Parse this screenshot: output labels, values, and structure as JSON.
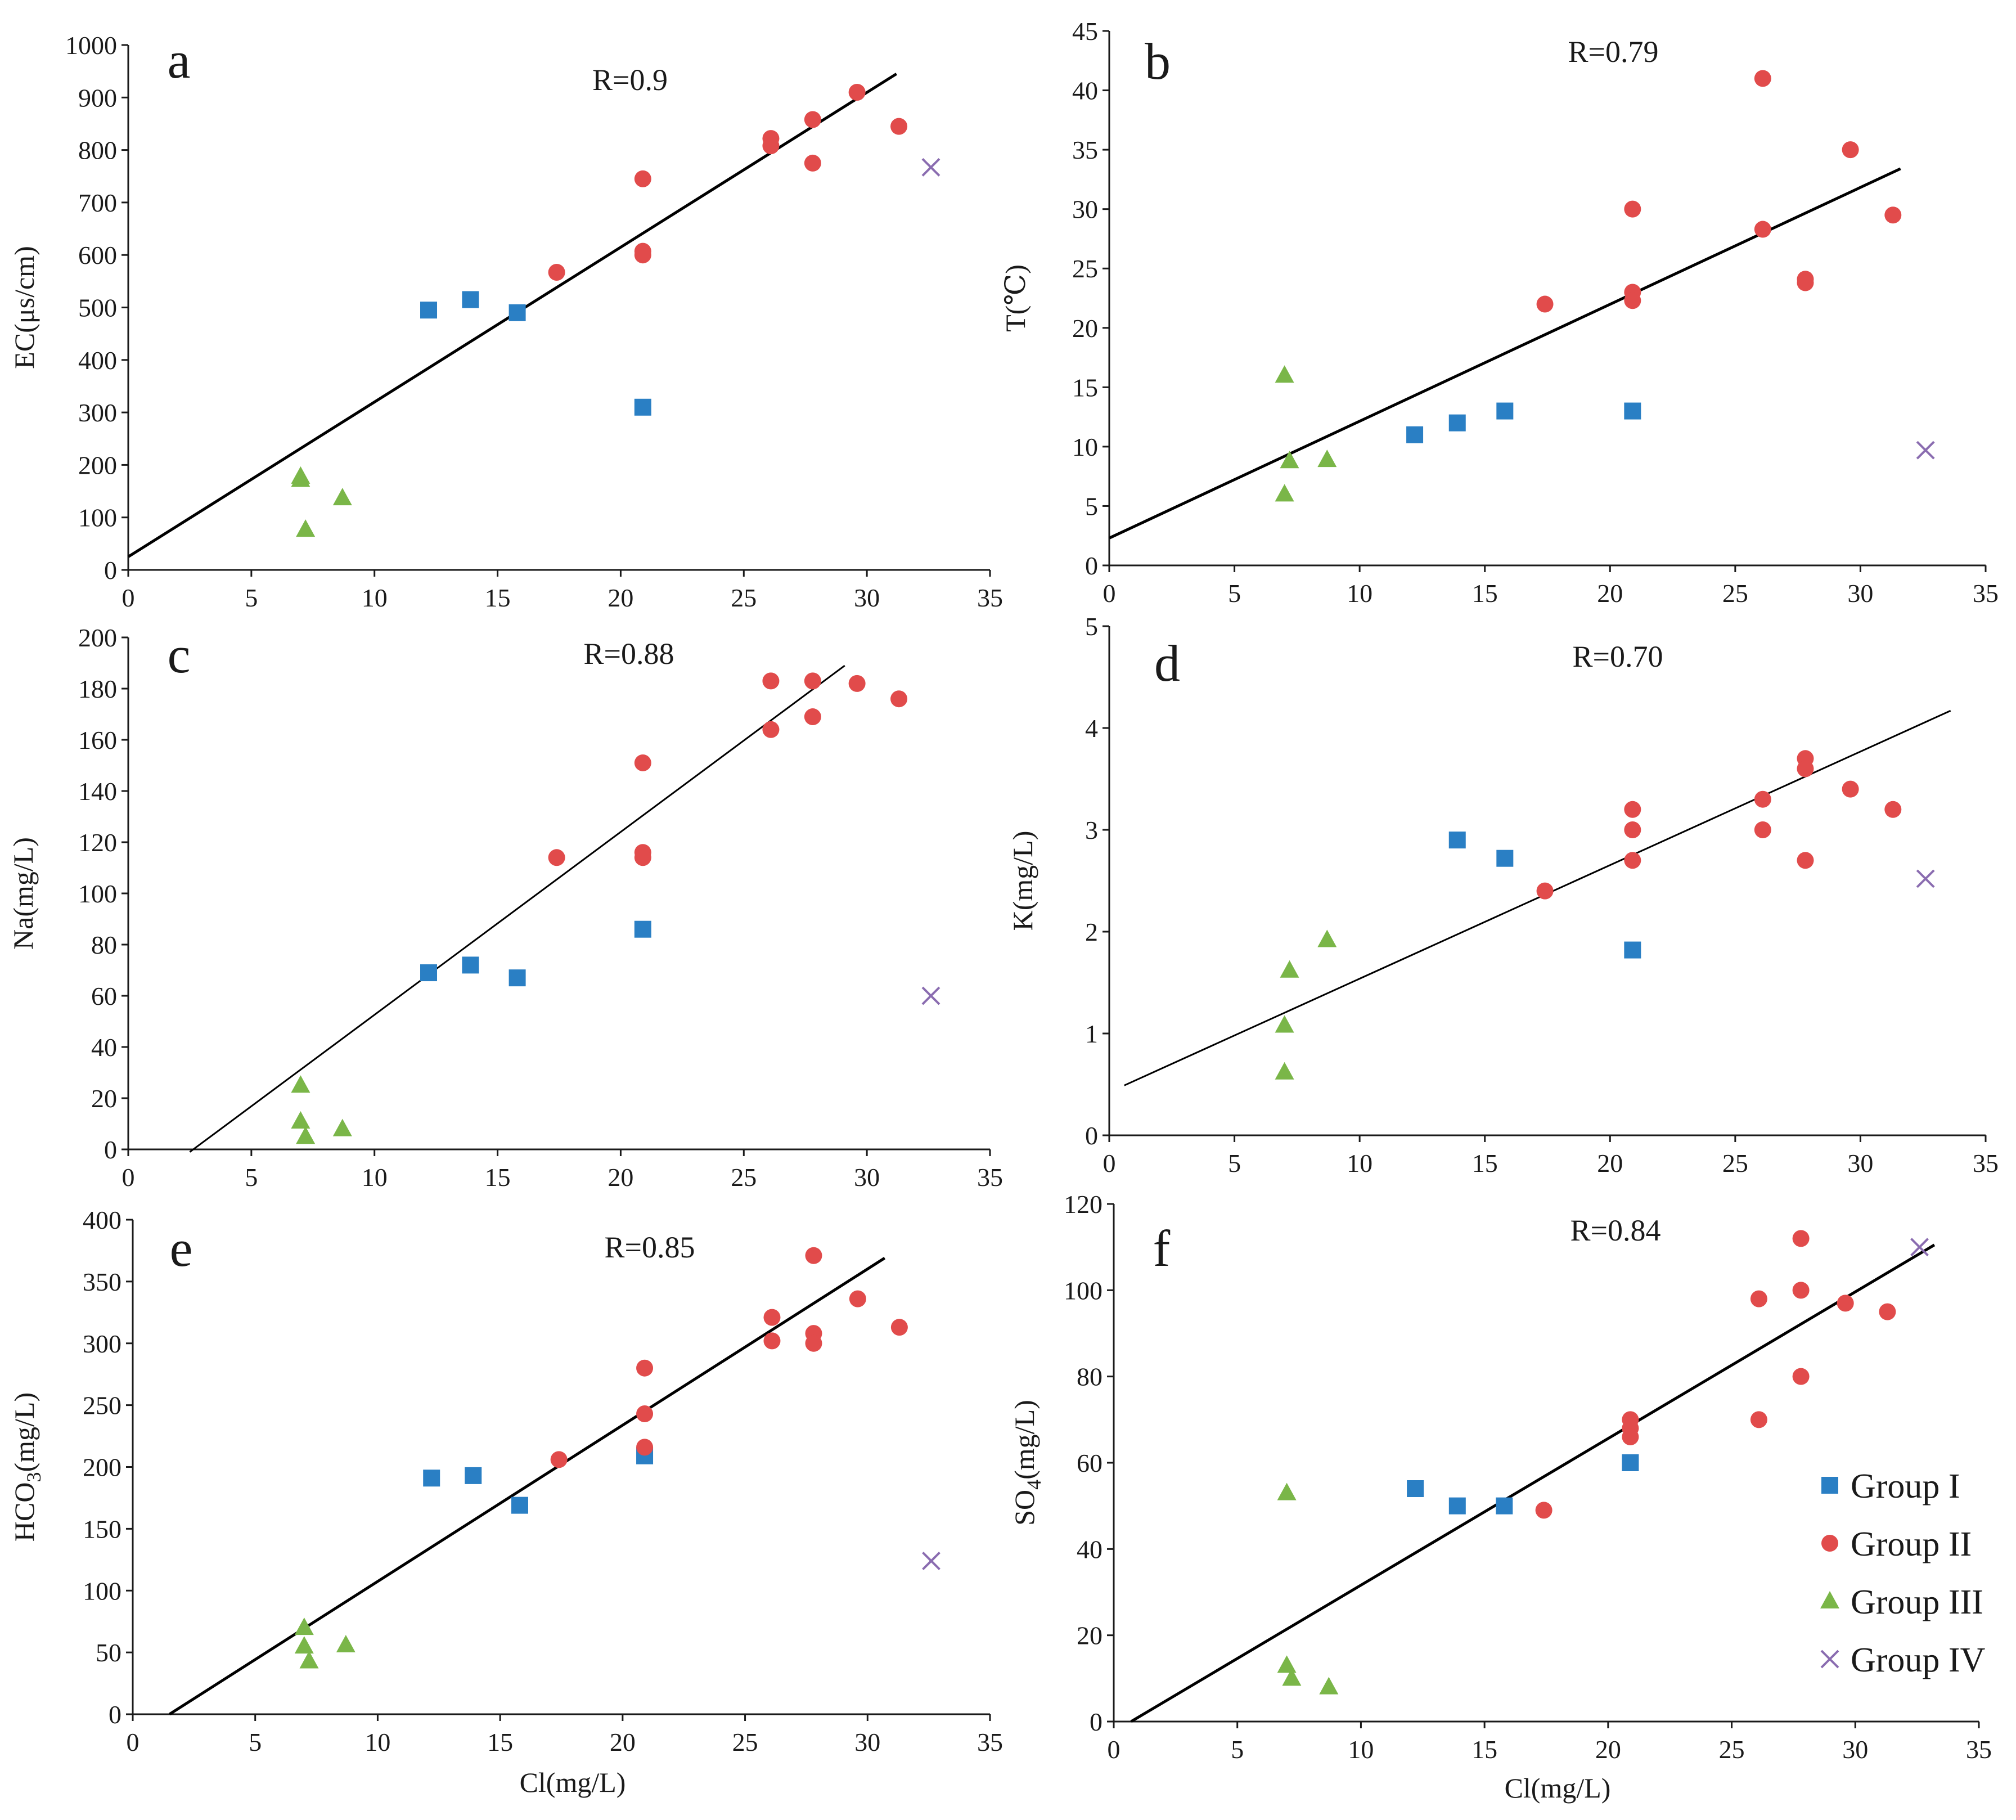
{
  "colors": {
    "group_i": "#2a7fc4",
    "group_ii": "#e14b4b",
    "group_iii": "#7ab648",
    "group_iv": "#8a6cb0"
  },
  "legend": {
    "items": [
      {
        "label": "Group I",
        "marker": "square",
        "color": "#2a7fc4"
      },
      {
        "label": "Group II",
        "marker": "circle",
        "color": "#e14b4b"
      },
      {
        "label": "Group III",
        "marker": "triangle",
        "color": "#7ab648"
      },
      {
        "label": "Group IV",
        "marker": "cross",
        "color": "#8a6cb0"
      }
    ]
  },
  "chart_data": [
    {
      "id": "a",
      "type": "scatter",
      "panel_letter": "a",
      "r_label": "R=0.9",
      "xlabel": "",
      "ylabel": "EC(μs/cm)",
      "xlim": [
        0,
        35
      ],
      "ylim": [
        0,
        1000
      ],
      "xstep": 5,
      "ystep": 100,
      "xticks": [
        "0",
        "5",
        "10",
        "15",
        "20",
        "25",
        "30",
        "35"
      ],
      "yticks": [
        "0",
        "100",
        "200",
        "300",
        "400",
        "500",
        "600",
        "700",
        "800",
        "900",
        "1000"
      ],
      "fit": {
        "x1": 0,
        "y1": 25,
        "x2": 31.2,
        "y2": 945
      },
      "series": [
        {
          "name": "Group I",
          "points": [
            [
              12.2,
              495
            ],
            [
              13.9,
              515
            ],
            [
              15.8,
              490
            ],
            [
              20.9,
              310
            ]
          ]
        },
        {
          "name": "Group II",
          "points": [
            [
              17.4,
              567
            ],
            [
              20.9,
              745
            ],
            [
              20.9,
              607
            ],
            [
              20.9,
              600
            ],
            [
              26.1,
              822
            ],
            [
              26.1,
              808
            ],
            [
              27.8,
              858
            ],
            [
              27.8,
              775
            ],
            [
              29.6,
              910
            ],
            [
              31.3,
              845
            ]
          ]
        },
        {
          "name": "Group III",
          "points": [
            [
              7.0,
              178
            ],
            [
              7.0,
              172
            ],
            [
              7.2,
              77
            ],
            [
              8.7,
              137
            ]
          ]
        },
        {
          "name": "Group IV",
          "points": [
            [
              32.6,
              767
            ]
          ]
        }
      ]
    },
    {
      "id": "b",
      "type": "scatter",
      "panel_letter": "b",
      "r_label": "R=0.79",
      "xlabel": "",
      "ylabel": "T(℃)",
      "xlim": [
        0,
        35
      ],
      "ylim": [
        0,
        45
      ],
      "xstep": 5,
      "ystep": 5,
      "xticks": [
        "0",
        "5",
        "10",
        "15",
        "20",
        "25",
        "30",
        "35"
      ],
      "yticks": [
        "0",
        "5",
        "10",
        "15",
        "20",
        "25",
        "30",
        "35",
        "40",
        "45"
      ],
      "fit": {
        "x1": 0,
        "y1": 2.3,
        "x2": 31.6,
        "y2": 33.4
      },
      "series": [
        {
          "name": "Group I",
          "points": [
            [
              12.2,
              11
            ],
            [
              13.9,
              12
            ],
            [
              15.8,
              13
            ],
            [
              20.9,
              13
            ]
          ]
        },
        {
          "name": "Group II",
          "points": [
            [
              17.4,
              22
            ],
            [
              20.9,
              30
            ],
            [
              20.9,
              23
            ],
            [
              20.9,
              22.3
            ],
            [
              26.1,
              41
            ],
            [
              26.1,
              28.3
            ],
            [
              27.8,
              24.1
            ],
            [
              27.8,
              23.8
            ],
            [
              29.6,
              35
            ],
            [
              31.3,
              29.5
            ]
          ]
        },
        {
          "name": "Group III",
          "points": [
            [
              7.0,
              16
            ],
            [
              7.2,
              8.8
            ],
            [
              7.0,
              6
            ],
            [
              8.7,
              8.9
            ]
          ]
        },
        {
          "name": "Group IV",
          "points": [
            [
              32.6,
              9.7
            ]
          ]
        }
      ]
    },
    {
      "id": "c",
      "type": "scatter",
      "panel_letter": "c",
      "r_label": "R=0.88",
      "xlabel": "",
      "ylabel": "Na(mg/L)",
      "xlim": [
        0,
        35
      ],
      "ylim": [
        0,
        200
      ],
      "xstep": 5,
      "ystep": 20,
      "xticks": [
        "0",
        "5",
        "10",
        "15",
        "20",
        "25",
        "30",
        "35"
      ],
      "yticks": [
        "0",
        "20",
        "40",
        "60",
        "80",
        "100",
        "120",
        "140",
        "160",
        "180",
        "200"
      ],
      "fit": {
        "x1": 2.5,
        "y1": -1,
        "x2": 29.1,
        "y2": 189
      },
      "series": [
        {
          "name": "Group I",
          "points": [
            [
              12.2,
              69
            ],
            [
              13.9,
              72
            ],
            [
              15.8,
              67
            ],
            [
              20.9,
              86
            ]
          ]
        },
        {
          "name": "Group II",
          "points": [
            [
              17.4,
              114
            ],
            [
              20.9,
              151
            ],
            [
              20.9,
              116
            ],
            [
              20.9,
              114
            ],
            [
              26.1,
              183
            ],
            [
              26.1,
              164
            ],
            [
              27.8,
              183
            ],
            [
              27.8,
              169
            ],
            [
              29.6,
              182
            ],
            [
              31.3,
              176
            ]
          ]
        },
        {
          "name": "Group III",
          "points": [
            [
              7.0,
              25
            ],
            [
              7.0,
              11
            ],
            [
              7.2,
              5
            ],
            [
              8.7,
              8
            ]
          ]
        },
        {
          "name": "Group IV",
          "points": [
            [
              32.6,
              60
            ]
          ]
        }
      ]
    },
    {
      "id": "d",
      "type": "scatter",
      "panel_letter": "d",
      "r_label": "R=0.70",
      "xlabel": "",
      "ylabel": "K(mg/L)",
      "xlim": [
        0,
        35
      ],
      "ylim": [
        0,
        5
      ],
      "xstep": 5,
      "ystep": 1,
      "xticks": [
        "0",
        "5",
        "10",
        "15",
        "20",
        "25",
        "30",
        "35"
      ],
      "yticks": [
        "0",
        "1",
        "2",
        "3",
        "4",
        "5"
      ],
      "fit": {
        "x1": 0.6,
        "y1": 0.49,
        "x2": 33.6,
        "y2": 4.17
      },
      "series": [
        {
          "name": "Group I",
          "points": [
            [
              13.9,
              2.9
            ],
            [
              15.8,
              2.72
            ],
            [
              20.9,
              1.82
            ]
          ]
        },
        {
          "name": "Group II",
          "points": [
            [
              17.4,
              2.4
            ],
            [
              20.9,
              3.2
            ],
            [
              20.9,
              3.0
            ],
            [
              20.9,
              2.7
            ],
            [
              26.1,
              3.3
            ],
            [
              26.1,
              3.0
            ],
            [
              27.8,
              3.7
            ],
            [
              27.8,
              3.6
            ],
            [
              27.8,
              2.7
            ],
            [
              29.6,
              3.4
            ],
            [
              31.3,
              3.2
            ]
          ]
        },
        {
          "name": "Group III",
          "points": [
            [
              7.0,
              1.08
            ],
            [
              7.0,
              0.62
            ],
            [
              7.2,
              1.62
            ],
            [
              8.7,
              1.92
            ]
          ]
        },
        {
          "name": "Group IV",
          "points": [
            [
              32.6,
              2.52
            ]
          ]
        }
      ]
    },
    {
      "id": "e",
      "type": "scatter",
      "panel_letter": "e",
      "r_label": "R=0.85",
      "xlabel": "Cl(mg/L)",
      "ylabel": "HCO3(mg/L)",
      "ylabel_main": "HCO",
      "ylabel_sub": "3",
      "ylabel_rest": "(mg/L)",
      "xlim": [
        0,
        35
      ],
      "ylim": [
        0,
        400
      ],
      "xstep": 5,
      "ystep": 50,
      "xticks": [
        "0",
        "5",
        "10",
        "15",
        "20",
        "25",
        "30",
        "35"
      ],
      "yticks": [
        "0",
        "50",
        "100",
        "150",
        "200",
        "250",
        "300",
        "350",
        "400"
      ],
      "fit": {
        "x1": 1.5,
        "y1": 0,
        "x2": 30.7,
        "y2": 369
      },
      "series": [
        {
          "name": "Group I",
          "points": [
            [
              12.2,
              191
            ],
            [
              13.9,
              193
            ],
            [
              15.8,
              169
            ],
            [
              20.9,
              209
            ]
          ]
        },
        {
          "name": "Group II",
          "points": [
            [
              17.4,
              206
            ],
            [
              20.9,
              280
            ],
            [
              20.9,
              243
            ],
            [
              20.9,
              216
            ],
            [
              26.1,
              321
            ],
            [
              26.1,
              302
            ],
            [
              27.8,
              371
            ],
            [
              27.8,
              308
            ],
            [
              27.8,
              300
            ],
            [
              29.6,
              336
            ],
            [
              31.3,
              313
            ]
          ]
        },
        {
          "name": "Group III",
          "points": [
            [
              7.0,
              70
            ],
            [
              7.0,
              55
            ],
            [
              7.2,
              43
            ],
            [
              8.7,
              56
            ]
          ]
        },
        {
          "name": "Group IV",
          "points": [
            [
              32.6,
              124
            ]
          ]
        }
      ]
    },
    {
      "id": "f",
      "type": "scatter",
      "panel_letter": "f",
      "r_label": "R=0.84",
      "xlabel": "Cl(mg/L)",
      "ylabel": "SO4(mg/L)",
      "ylabel_main": "SO",
      "ylabel_sub": "4",
      "ylabel_rest": "(mg/L)",
      "xlim": [
        0,
        35
      ],
      "ylim": [
        0,
        120
      ],
      "xstep": 5,
      "ystep": 20,
      "xticks": [
        "0",
        "5",
        "10",
        "15",
        "20",
        "25",
        "30",
        "35"
      ],
      "yticks": [
        "0",
        "20",
        "40",
        "60",
        "80",
        "100",
        "120"
      ],
      "fit": {
        "x1": 0.7,
        "y1": 0,
        "x2": 33.2,
        "y2": 110.5
      },
      "series": [
        {
          "name": "Group I",
          "points": [
            [
              12.2,
              54
            ],
            [
              13.9,
              50
            ],
            [
              15.8,
              50
            ],
            [
              20.9,
              60
            ]
          ]
        },
        {
          "name": "Group II",
          "points": [
            [
              17.4,
              49
            ],
            [
              20.9,
              70
            ],
            [
              20.9,
              68
            ],
            [
              20.9,
              66
            ],
            [
              26.1,
              98
            ],
            [
              26.1,
              70
            ],
            [
              27.8,
              112
            ],
            [
              27.8,
              100
            ],
            [
              27.8,
              80
            ],
            [
              29.6,
              97
            ],
            [
              31.3,
              95
            ]
          ]
        },
        {
          "name": "Group III",
          "points": [
            [
              7.0,
              53
            ],
            [
              7.0,
              13
            ],
            [
              7.2,
              10
            ],
            [
              8.7,
              8
            ]
          ]
        },
        {
          "name": "Group IV",
          "points": [
            [
              32.6,
              110
            ]
          ]
        }
      ]
    }
  ]
}
